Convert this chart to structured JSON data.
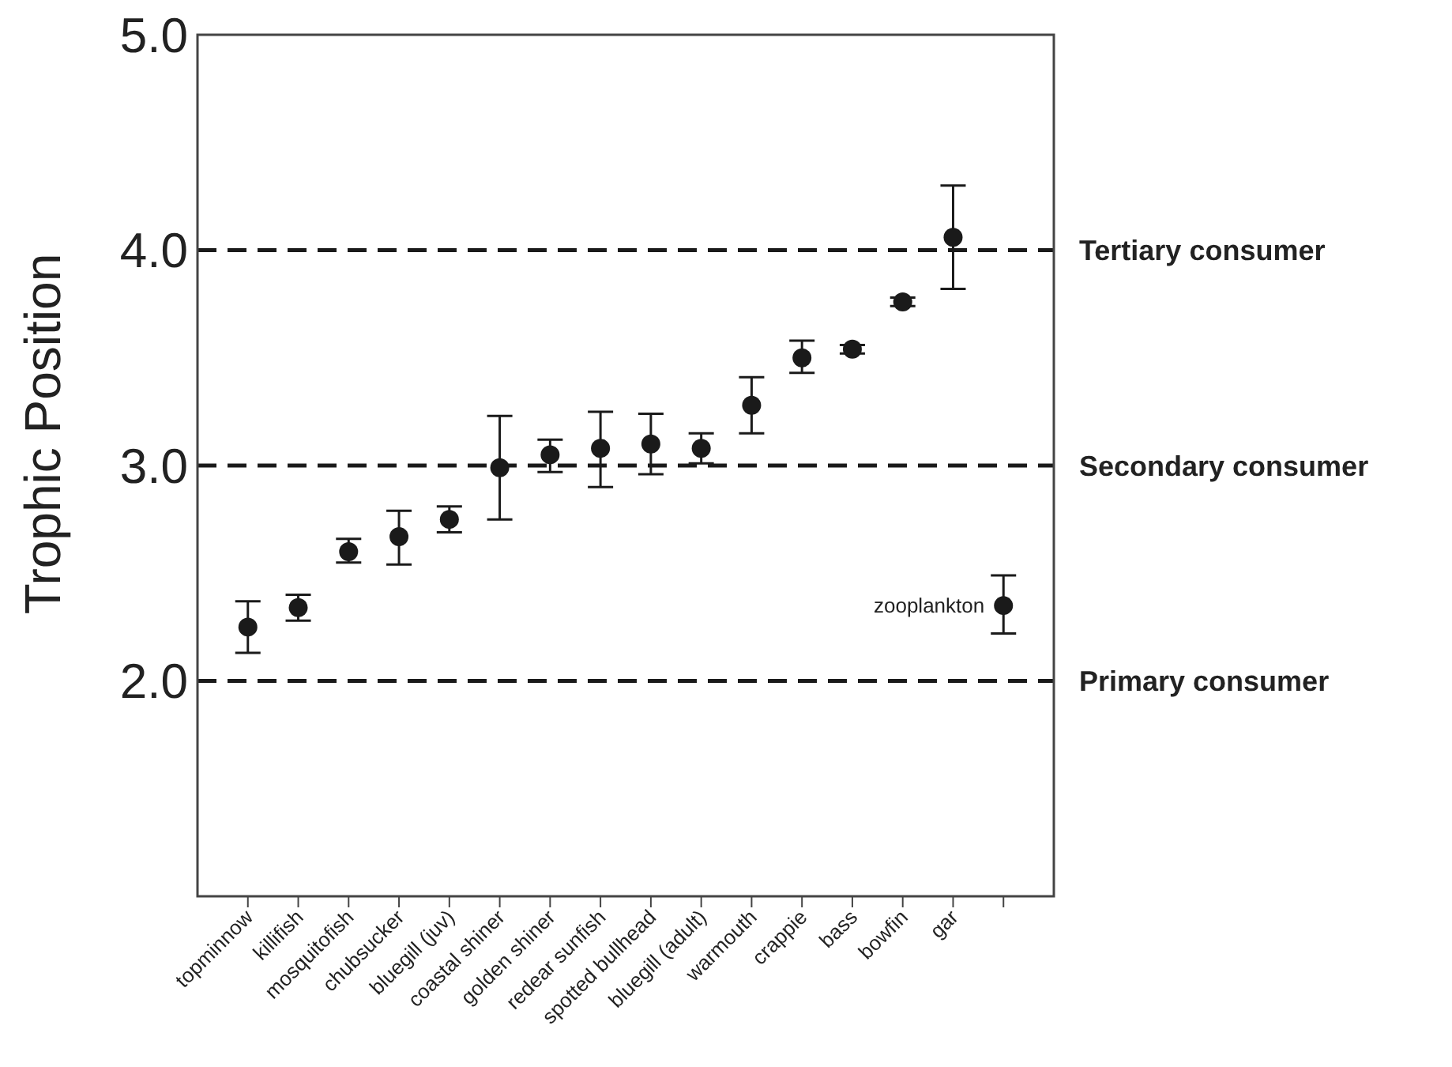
{
  "chart_data": {
    "type": "scatter",
    "ylabel": "Trophic Position",
    "categories": [
      "topminnow",
      "killifish",
      "mosquitofish",
      "chubsucker",
      "bluegill (juv)",
      "coastal shiner",
      "golden shiner",
      "redear sunfish",
      "spotted bullhead",
      "bluegill (adult)",
      "warmouth",
      "crappie",
      "bass",
      "bowfin",
      "gar",
      null
    ],
    "values": [
      2.25,
      2.34,
      2.6,
      2.67,
      2.75,
      2.99,
      3.05,
      3.08,
      3.1,
      3.08,
      3.28,
      3.5,
      3.54,
      3.76,
      4.06,
      2.35
    ],
    "errors": [
      [
        2.13,
        2.37
      ],
      [
        2.28,
        2.4
      ],
      [
        2.55,
        2.66
      ],
      [
        2.54,
        2.79
      ],
      [
        2.69,
        2.81
      ],
      [
        2.75,
        3.23
      ],
      [
        2.97,
        3.12
      ],
      [
        2.9,
        3.25
      ],
      [
        2.96,
        3.24
      ],
      [
        3.01,
        3.15
      ],
      [
        3.15,
        3.41
      ],
      [
        3.43,
        3.58
      ],
      [
        3.52,
        3.56
      ],
      [
        3.74,
        3.78
      ],
      [
        3.82,
        4.3
      ],
      [
        2.22,
        2.49
      ]
    ],
    "color": "#1a1a1a",
    "marker": "circle",
    "ylim": [
      1,
      5
    ],
    "yticks": [
      {
        "value": 2,
        "label": "2.0"
      },
      {
        "value": 3,
        "label": "3.0"
      },
      {
        "value": 4,
        "label": "4.0"
      },
      {
        "value": 5,
        "label": "5.0"
      }
    ],
    "grid": false,
    "ref_lines": [
      {
        "axis": "y",
        "value": 2,
        "label": "Primary consumer",
        "color": "#1a1a1a",
        "line_style": "dashed"
      },
      {
        "axis": "y",
        "value": 3,
        "label": "Secondary consumer",
        "color": "#1a1a1a",
        "line_style": "dashed"
      },
      {
        "axis": "y",
        "value": 4,
        "label": "Tertiary consumer",
        "color": "#1a1a1a",
        "line_style": "dashed"
      }
    ],
    "annotations": [
      "zooplankton"
    ]
  }
}
